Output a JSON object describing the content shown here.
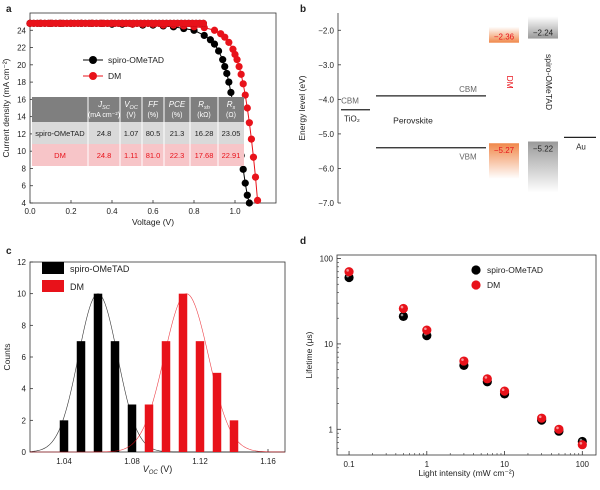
{
  "chart_data": [
    {
      "panel": "a",
      "type": "line",
      "xlabel": "Voltage (V)",
      "ylabel": "Current density (mA cm⁻²)",
      "xlim": [
        0,
        1.2
      ],
      "ylim": [
        4,
        26
      ],
      "xticks": [
        "0.0",
        "0.2",
        "0.4",
        "0.6",
        "0.8",
        "1.0"
      ],
      "yticks": [
        "4",
        "6",
        "8",
        "10",
        "12",
        "14",
        "16",
        "18",
        "20",
        "22",
        "24"
      ],
      "legend_position": "upper-left",
      "series": [
        {
          "name": "spiro-OMeTAD",
          "color": "#000000",
          "x": [
            0,
            0.05,
            0.1,
            0.15,
            0.2,
            0.25,
            0.3,
            0.35,
            0.4,
            0.45,
            0.5,
            0.55,
            0.6,
            0.65,
            0.7,
            0.75,
            0.8,
            0.85,
            0.88,
            0.9,
            0.92,
            0.94,
            0.95,
            0.96,
            0.97,
            0.98,
            0.99,
            1.0,
            1.01,
            1.02,
            1.03,
            1.04,
            1.05,
            1.06,
            1.07
          ],
          "y": [
            24.8,
            24.8,
            24.8,
            24.8,
            24.8,
            24.8,
            24.8,
            24.8,
            24.7,
            24.7,
            24.7,
            24.6,
            24.6,
            24.5,
            24.4,
            24.2,
            24.0,
            23.4,
            22.9,
            22.4,
            21.6,
            20.6,
            19.8,
            19.0,
            18.0,
            16.8,
            15.5,
            14.1,
            12.6,
            11.1,
            9.5,
            7.9,
            6.3,
            4.9,
            4.0
          ]
        },
        {
          "name": "DM",
          "color": "#e8121a",
          "x": [
            0,
            0.05,
            0.1,
            0.15,
            0.2,
            0.25,
            0.3,
            0.35,
            0.4,
            0.45,
            0.5,
            0.55,
            0.6,
            0.65,
            0.7,
            0.75,
            0.8,
            0.85,
            0.9,
            0.93,
            0.95,
            0.97,
            0.99,
            1.0,
            1.01,
            1.02,
            1.03,
            1.04,
            1.05,
            1.06,
            1.07,
            1.08,
            1.09,
            1.1,
            1.11
          ],
          "y": [
            24.8,
            24.8,
            24.8,
            24.8,
            24.8,
            24.8,
            24.8,
            24.8,
            24.8,
            24.8,
            24.7,
            24.7,
            24.7,
            24.6,
            24.6,
            24.5,
            24.4,
            24.3,
            24.0,
            23.6,
            23.2,
            22.6,
            21.8,
            21.2,
            20.6,
            19.8,
            18.9,
            17.8,
            16.5,
            15.0,
            13.3,
            11.4,
            9.3,
            7.0,
            4.3
          ]
        }
      ],
      "table": {
        "headers": [
          "",
          "J_SC (mA cm⁻²)",
          "V_OC (V)",
          "FF (%)",
          "PCE (%)",
          "R_sh (kΩ)",
          "R_s (Ω)"
        ],
        "header_lines": [
          [
            "",
            ""
          ],
          [
            "J",
            "(mA cm⁻²)"
          ],
          [
            "V",
            "(V)"
          ],
          [
            "FF",
            "(%)"
          ],
          [
            "PCE",
            "(%)"
          ],
          [
            "R",
            "(kΩ)"
          ],
          [
            "R",
            "(Ω)"
          ]
        ],
        "header_subs": [
          "",
          "SC",
          "OC",
          "",
          "",
          "sh",
          "s"
        ],
        "rows": [
          [
            "spiro-OMeTAD",
            "24.8",
            "1.07",
            "80.5",
            "21.3",
            "16.28",
            "23.05"
          ],
          [
            "DM",
            "24.8",
            "1.11",
            "81.0",
            "22.3",
            "17.68",
            "22.91"
          ]
        ]
      }
    },
    {
      "panel": "b",
      "type": "diagram",
      "ylabel": "Energy level (eV)",
      "ylim": [
        -7.0,
        -1.5
      ],
      "yticks": [
        "-2.0",
        "-3.0",
        "-4.0",
        "-5.0",
        "-6.0",
        "-7.0"
      ],
      "labels": {
        "tio2": "TiO₂",
        "perovskite": "Perovskite",
        "au": "Au",
        "cbm_left": "CBM",
        "cbm_right": "CBM",
        "vbm": "VBM",
        "dm": "DM",
        "spiro": "spiro-OMeTAD"
      },
      "levels": {
        "tio2_cbm": -4.3,
        "perovskite_cbm": -3.9,
        "perovskite_vbm": -5.4,
        "au": -5.1,
        "dm_lumo": "−2.36",
        "dm_homo": "−5.27",
        "spiro_lumo": "−2.24",
        "spiro_homo": "−5.22"
      },
      "level_values": {
        "dm_lumo": -2.36,
        "dm_homo": -5.27,
        "spiro_lumo": -2.24,
        "spiro_homo": -5.22
      },
      "colors": {
        "dm": "#e8121a",
        "dm_bar": "#f0884a",
        "spiro_bar": "#9a9a9a"
      }
    },
    {
      "panel": "c",
      "type": "bar",
      "xlabel": "V_OC (V)",
      "xlabel_main": "V",
      "xlabel_sub": "OC",
      "xlabel_unit": " (V)",
      "ylabel": "Counts",
      "xlim": [
        1.02,
        1.17
      ],
      "ylim": [
        0,
        12
      ],
      "xticks": [
        "1.04",
        "1.08",
        "1.12",
        "1.16"
      ],
      "yticks": [
        "0",
        "2",
        "4",
        "6",
        "8",
        "10",
        "12"
      ],
      "series": [
        {
          "name": "spiro-OMeTAD",
          "color": "#000000",
          "x": [
            1.04,
            1.05,
            1.06,
            1.07,
            1.08
          ],
          "values": [
            2,
            7,
            10,
            7,
            3
          ],
          "fit_mean": 1.06,
          "fit_sigma": 0.0115
        },
        {
          "name": "DM",
          "color": "#e8121a",
          "x": [
            1.09,
            1.1,
            1.11,
            1.12,
            1.13,
            1.14
          ],
          "values": [
            3,
            7,
            10,
            7,
            5,
            2
          ],
          "fit_mean": 1.112,
          "fit_sigma": 0.013
        }
      ]
    },
    {
      "panel": "d",
      "type": "scatter",
      "xlabel": "Light intensity (mW cm⁻²)",
      "ylabel": "Lifetime (μs)",
      "xscale": "log",
      "yscale": "log",
      "xlim": [
        0.07,
        150
      ],
      "ylim": [
        0.5,
        110
      ],
      "xticks": [
        "0.1",
        "1",
        "10",
        "100"
      ],
      "yticks": [
        "1",
        "10",
        "100"
      ],
      "series": [
        {
          "name": "spiro-OMeTAD",
          "color": "#000000",
          "x": [
            0.1,
            0.5,
            1,
            3,
            6,
            10,
            30,
            50,
            100
          ],
          "y": [
            60,
            21,
            12.5,
            5.6,
            3.6,
            2.6,
            1.28,
            0.95,
            0.72
          ]
        },
        {
          "name": "DM",
          "color": "#e8121a",
          "x": [
            0.1,
            0.5,
            1,
            3,
            6,
            10,
            30,
            50,
            100
          ],
          "y": [
            70,
            26,
            14.5,
            6.3,
            3.9,
            2.8,
            1.35,
            1.0,
            0.66
          ]
        }
      ]
    }
  ]
}
